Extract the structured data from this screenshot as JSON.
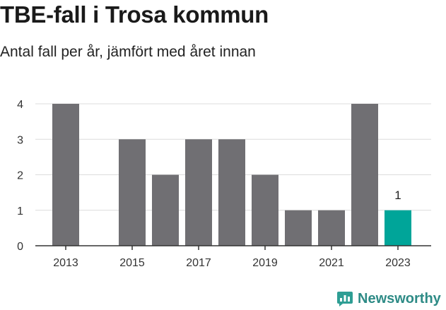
{
  "header": {
    "title": "TBE-fall i Trosa kommun",
    "subtitle": "Antal fall per år, jämfört med året innan"
  },
  "brand": {
    "name": "Newsworthy",
    "icon": "bar-chart-bubble-icon",
    "color": "#2e9e94"
  },
  "chart_data": {
    "type": "bar",
    "title": "TBE-fall i Trosa kommun",
    "subtitle": "Antal fall per år, jämfört med året innan",
    "xlabel": "",
    "ylabel": "",
    "categories": [
      "2013",
      "2014",
      "2015",
      "2016",
      "2017",
      "2018",
      "2019",
      "2020",
      "2021",
      "2022",
      "2023"
    ],
    "values": [
      4,
      0,
      3,
      2,
      3,
      3,
      2,
      1,
      1,
      4,
      1
    ],
    "x_tick_labels": [
      "2013",
      "2015",
      "2017",
      "2019",
      "2021",
      "2023"
    ],
    "y_ticks": [
      "0",
      "1",
      "2",
      "3",
      "4"
    ],
    "ylim": [
      0,
      4
    ],
    "grid": true,
    "highlight_category": "2023",
    "highlight_label": "1",
    "colors": {
      "bar": "#706f73",
      "highlight": "#00a599",
      "grid": "#dcdcdc",
      "axis": "#333333"
    }
  }
}
